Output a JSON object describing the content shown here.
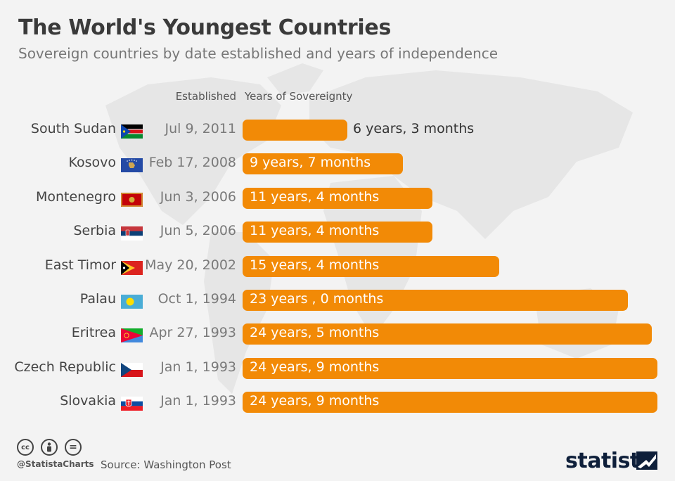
{
  "header": {
    "title": "The World's Youngest Countries",
    "subtitle": "Sovereign countries by date established and years of independence"
  },
  "columns": {
    "established": "Established",
    "years": "Years of Sovereignty"
  },
  "colors": {
    "bar": "#f28a06",
    "background": "#f3f3f3",
    "map": "#e6e6e6"
  },
  "chart_data": {
    "type": "bar",
    "orientation": "horizontal",
    "categories": [
      "South Sudan",
      "Kosovo",
      "Montenegro",
      "Serbia",
      "East Timor",
      "Palau",
      "Eritrea",
      "Czech Republic",
      "Slovakia"
    ],
    "established": [
      "Jul 9, 2011",
      "Feb 17, 2008",
      "Jun 3, 2006",
      "Jun 5, 2006",
      "May 20, 2002",
      "Oct 1, 1994",
      "Apr 27, 1993",
      "Jan 1, 1993",
      "Jan 1, 1993"
    ],
    "labels": [
      "6 years, 3 months",
      "9 years, 7 months",
      "11 years, 4 months",
      "11 years, 4 months",
      "15 years, 4 months",
      "23 years , 0 months",
      "24 years, 5 months",
      "24 years, 9 months",
      "24 years, 9 months"
    ],
    "values": [
      6.25,
      9.58,
      11.33,
      11.33,
      15.33,
      23.0,
      24.42,
      24.75,
      24.75
    ],
    "flags": [
      "south-sudan-flag",
      "kosovo-flag",
      "montenegro-flag",
      "serbia-flag",
      "east-timor-flag",
      "palau-flag",
      "eritrea-flag",
      "czech-republic-flag",
      "slovakia-flag"
    ],
    "grid": false
  },
  "footer": {
    "handle": "@StatistaCharts",
    "source": "Source: Washington Post",
    "logo": "statista",
    "icons": [
      "cc-icon",
      "by-icon",
      "nd-icon"
    ],
    "icon_glyphs": [
      "cc",
      "",
      "="
    ]
  }
}
